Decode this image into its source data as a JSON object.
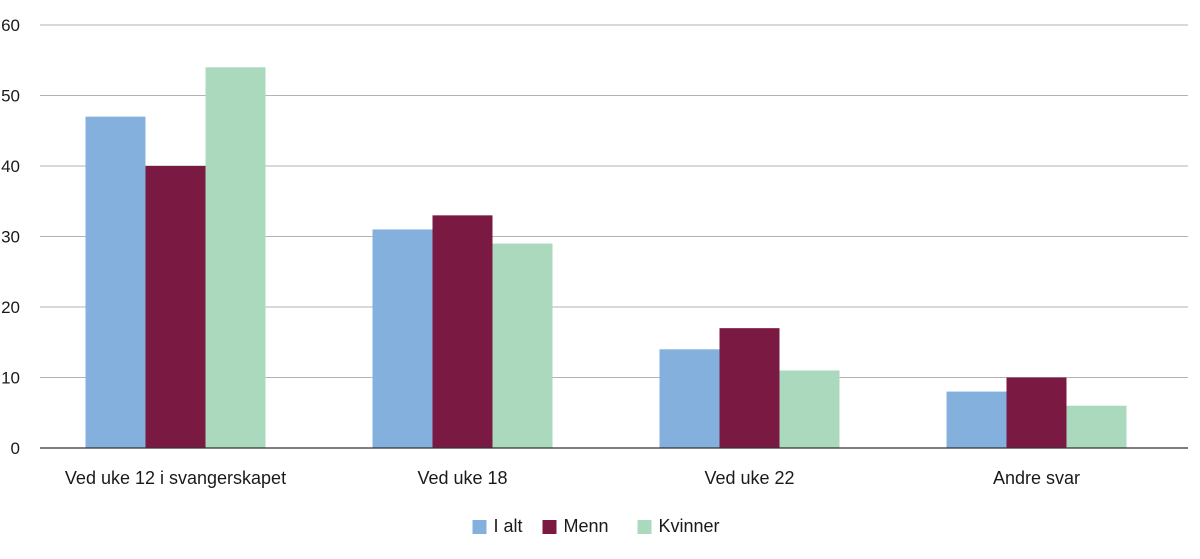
{
  "chart_data": {
    "type": "bar",
    "categories": [
      "Ved uke 12 i svangerskapet",
      "Ved uke 18",
      "Ved uke 22",
      "Andre svar"
    ],
    "series": [
      {
        "name": "I alt",
        "values": [
          47,
          31,
          14,
          8
        ],
        "color": "#83b0dc"
      },
      {
        "name": "Menn",
        "values": [
          40,
          33,
          17,
          10
        ],
        "color": "#7a1a42"
      },
      {
        "name": "Kvinner",
        "values": [
          54,
          29,
          11,
          6
        ],
        "color": "#abd9be"
      }
    ],
    "yticks": [
      "0",
      "10",
      "20",
      "30",
      "40",
      "50",
      "60"
    ],
    "ylim": [
      0,
      60
    ],
    "grid": true,
    "legend": "bottom-center",
    "title": "",
    "xlabel": "",
    "ylabel": ""
  }
}
